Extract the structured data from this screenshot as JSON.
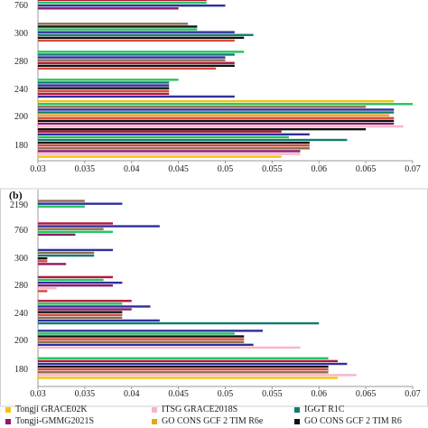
{
  "colors": {
    "Tongji GRACE02K": "#f2c40b",
    "ITSG GRACE2018S": "#f7b5c8",
    "IGGT R1C": "#137a72",
    "Tongji-GMMG2021S": "#8a1b6c",
    "GO CONS GCF 2 TIM R6e": "#e3a61c",
    "GO CONS GCF 2 TIM R6": "#111111",
    "series7": "#b5183a",
    "series8": "#2f2f9c",
    "series9": "#22c55e",
    "series10": "#8b6b4e",
    "series11": "#d64a3b"
  },
  "legend": [
    {
      "name": "Tongji GRACE02K",
      "color": "#f2c40b"
    },
    {
      "name": "ITSG GRACE2018S",
      "color": "#f7b5c8"
    },
    {
      "name": "IGGT R1C",
      "color": "#137a72"
    },
    {
      "name": "Tongji-GMMG2021S",
      "color": "#8a1b6c"
    },
    {
      "name": "GO CONS GCF 2 TIM R6e",
      "color": "#e3a61c"
    },
    {
      "name": "GO CONS GCF 2 TIM R6",
      "color": "#111111"
    }
  ],
  "chart_data": [
    {
      "type": "bar",
      "orientation": "horizontal",
      "panel_label": "",
      "categories": [
        "180",
        "200",
        "240",
        "280",
        "300",
        "760"
      ],
      "xlim": [
        0.03,
        0.07
      ],
      "xticks": [
        "0.03",
        "0.035",
        "0.04",
        "0.045",
        "0.05",
        "0.055",
        "0.06",
        "0.065",
        "0.07"
      ],
      "grid": false,
      "bars": {
        "180": [
          {
            "color": "#b5183a",
            "value": 0.056
          },
          {
            "color": "#2f2f9c",
            "value": 0.059
          },
          {
            "color": "#22c55e",
            "value": 0.0568
          },
          {
            "color": "#137a72",
            "value": 0.063
          },
          {
            "color": "#111111",
            "value": 0.059
          },
          {
            "color": "#d64a3b",
            "value": 0.059
          },
          {
            "color": "#8b6b4e",
            "value": 0.059
          },
          {
            "color": "#8a1b6c",
            "value": 0.058
          },
          {
            "color": "#f7b5c8",
            "value": 0.058
          },
          {
            "color": "#f2c40b",
            "value": 0.056
          }
        ],
        "200": [
          {
            "color": "#f2c40b",
            "value": 0.068
          },
          {
            "color": "#22c55e",
            "value": 0.07
          },
          {
            "color": "#8b6b4e",
            "value": 0.065
          },
          {
            "color": "#2f2f9c",
            "value": 0.068
          },
          {
            "color": "#137a72",
            "value": 0.068
          },
          {
            "color": "#e3a61c",
            "value": 0.0675
          },
          {
            "color": "#d64a3b",
            "value": 0.068
          },
          {
            "color": "#111111",
            "value": 0.068
          },
          {
            "color": "#8a1b6c",
            "value": 0.068
          },
          {
            "color": "#f7b5c8",
            "value": 0.069
          },
          {
            "color": "#111111",
            "value": 0.065
          }
        ],
        "240": [
          {
            "color": "#22c55e",
            "value": 0.045
          },
          {
            "color": "#137a72",
            "value": 0.044
          },
          {
            "color": "#2f2f9c",
            "value": 0.044
          },
          {
            "color": "#111111",
            "value": 0.044
          },
          {
            "color": "#d64a3b",
            "value": 0.044
          },
          {
            "color": "#b5183a",
            "value": 0.044
          },
          {
            "color": "#2f2f9c",
            "value": 0.051
          }
        ],
        "280": [
          {
            "color": "#22c55e",
            "value": 0.052
          },
          {
            "color": "#137a72",
            "value": 0.051
          },
          {
            "color": "#2f2f9c",
            "value": 0.05
          },
          {
            "color": "#8b6b4e",
            "value": 0.05
          },
          {
            "color": "#b5183a",
            "value": 0.051
          },
          {
            "color": "#111111",
            "value": 0.051
          },
          {
            "color": "#d64a3b",
            "value": 0.049
          }
        ],
        "300": [
          {
            "color": "#8b6b4e",
            "value": 0.046
          },
          {
            "color": "#111111",
            "value": 0.047
          },
          {
            "color": "#22c55e",
            "value": 0.047
          },
          {
            "color": "#2f2f9c",
            "value": 0.051
          },
          {
            "color": "#137a72",
            "value": 0.053
          },
          {
            "color": "#111111",
            "value": 0.052
          },
          {
            "color": "#d64a3b",
            "value": 0.051
          }
        ],
        "760": [
          {
            "color": "#b5183a",
            "value": 0.048
          },
          {
            "color": "#22c55e",
            "value": 0.048
          },
          {
            "color": "#2f2f9c",
            "value": 0.05
          },
          {
            "color": "#8a1b6c",
            "value": 0.045
          }
        ]
      }
    },
    {
      "type": "bar",
      "orientation": "horizontal",
      "panel_label": "(b)",
      "categories": [
        "180",
        "200",
        "240",
        "280",
        "300",
        "760",
        "2190"
      ],
      "xlim": [
        0.03,
        0.07
      ],
      "xticks": [
        "0.03",
        "0.035",
        "0.04",
        "0.045",
        "0.05",
        "0.055",
        "0.06",
        "0.065",
        "0.07"
      ],
      "grid": false,
      "bars": {
        "180": [
          {
            "color": "#22c55e",
            "value": 0.061
          },
          {
            "color": "#b5183a",
            "value": 0.062
          },
          {
            "color": "#2f2f9c",
            "value": 0.063
          },
          {
            "color": "#111111",
            "value": 0.061
          },
          {
            "color": "#d64a3b",
            "value": 0.061
          },
          {
            "color": "#8b6b4e",
            "value": 0.061
          },
          {
            "color": "#f7b5c8",
            "value": 0.064
          },
          {
            "color": "#f2c40b",
            "value": 0.062
          }
        ],
        "200": [
          {
            "color": "#2f2f9c",
            "value": 0.054
          },
          {
            "color": "#22c55e",
            "value": 0.051
          },
          {
            "color": "#111111",
            "value": 0.052
          },
          {
            "color": "#d64a3b",
            "value": 0.052
          },
          {
            "color": "#8b6b4e",
            "value": 0.052
          },
          {
            "color": "#2f2f9c",
            "value": 0.053
          },
          {
            "color": "#f7b5c8",
            "value": 0.058
          }
        ],
        "240": [
          {
            "color": "#b5183a",
            "value": 0.04
          },
          {
            "color": "#22c55e",
            "value": 0.039
          },
          {
            "color": "#2f2f9c",
            "value": 0.042
          },
          {
            "color": "#8a1b6c",
            "value": 0.04
          },
          {
            "color": "#111111",
            "value": 0.039
          },
          {
            "color": "#d64a3b",
            "value": 0.039
          },
          {
            "color": "#8b6b4e",
            "value": 0.039
          },
          {
            "color": "#2f2f9c",
            "value": 0.043
          },
          {
            "color": "#137a72",
            "value": 0.06
          }
        ],
        "280": [
          {
            "color": "#b5183a",
            "value": 0.038
          },
          {
            "color": "#22c55e",
            "value": 0.037
          },
          {
            "color": "#2f2f9c",
            "value": 0.039
          },
          {
            "color": "#8a1b6c",
            "value": 0.038
          },
          {
            "color": "#f7b5c8",
            "value": 0.032
          },
          {
            "color": "#d64a3b",
            "value": 0.031
          }
        ],
        "300": [
          {
            "color": "#2f2f9c",
            "value": 0.038
          },
          {
            "color": "#8b6b4e",
            "value": 0.036
          },
          {
            "color": "#137a72",
            "value": 0.036
          },
          {
            "color": "#111111",
            "value": 0.031
          },
          {
            "color": "#d64a3b",
            "value": 0.031
          },
          {
            "color": "#8a1b6c",
            "value": 0.033
          }
        ],
        "760": [
          {
            "color": "#b5183a",
            "value": 0.038
          },
          {
            "color": "#2f2f9c",
            "value": 0.043
          },
          {
            "color": "#8b6b4e",
            "value": 0.037
          },
          {
            "color": "#22c55e",
            "value": 0.038
          },
          {
            "color": "#8a1b6c",
            "value": 0.034
          }
        ],
        "2190": [
          {
            "color": "#8b6b4e",
            "value": 0.035
          },
          {
            "color": "#2f2f9c",
            "value": 0.039
          },
          {
            "color": "#22c55e",
            "value": 0.035
          }
        ]
      }
    }
  ]
}
